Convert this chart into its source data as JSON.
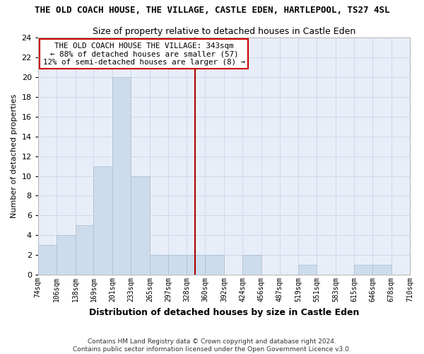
{
  "title": "THE OLD COACH HOUSE, THE VILLAGE, CASTLE EDEN, HARTLEPOOL, TS27 4SL",
  "subtitle": "Size of property relative to detached houses in Castle Eden",
  "xlabel": "Distribution of detached houses by size in Castle Eden",
  "ylabel": "Number of detached properties",
  "bar_edges": [
    74,
    106,
    138,
    169,
    201,
    233,
    265,
    297,
    328,
    360,
    392,
    424,
    456,
    487,
    519,
    551,
    583,
    615,
    646,
    678,
    710
  ],
  "bar_heights": [
    3,
    4,
    5,
    11,
    20,
    10,
    2,
    2,
    2,
    2,
    0,
    2,
    0,
    0,
    1,
    0,
    0,
    1,
    1,
    0
  ],
  "bar_color": "#ccdcec",
  "bar_edge_color": "#aabccc",
  "vline_x": 343,
  "vline_color": "#aa0000",
  "annotation_lines": [
    "THE OLD COACH HOUSE THE VILLAGE: 343sqm",
    "← 88% of detached houses are smaller (57)",
    "12% of semi-detached houses are larger (8) →"
  ],
  "annotation_box_color": "#ffffff",
  "annotation_box_edgecolor": "#cc0000",
  "ylim": [
    0,
    24
  ],
  "yticks": [
    0,
    2,
    4,
    6,
    8,
    10,
    12,
    14,
    16,
    18,
    20,
    22,
    24
  ],
  "tick_labels": [
    "74sqm",
    "106sqm",
    "138sqm",
    "169sqm",
    "201sqm",
    "233sqm",
    "265sqm",
    "297sqm",
    "328sqm",
    "360sqm",
    "392sqm",
    "424sqm",
    "456sqm",
    "487sqm",
    "519sqm",
    "551sqm",
    "583sqm",
    "615sqm",
    "646sqm",
    "678sqm",
    "710sqm"
  ],
  "footnote1": "Contains HM Land Registry data © Crown copyright and database right 2024.",
  "footnote2": "Contains public sector information licensed under the Open Government Licence v3.0.",
  "grid_color": "#d0d8e8",
  "background_color": "#e8eef8"
}
